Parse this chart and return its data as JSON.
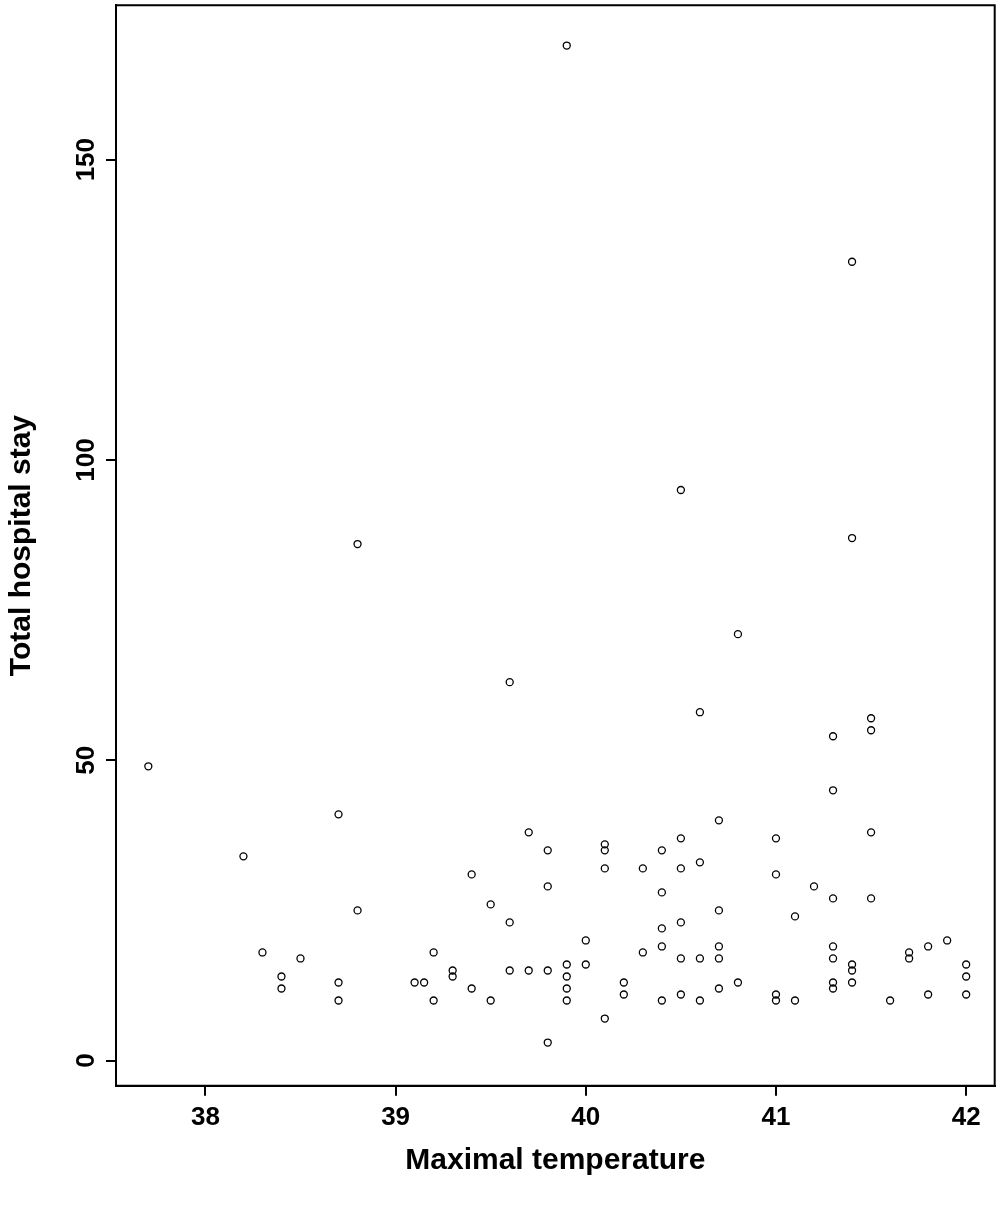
{
  "chart_data": {
    "type": "scatter",
    "xlabel": "Maximal temperature",
    "ylabel": "Total hospital stay",
    "color": "#000000",
    "marker": "circle",
    "grid": false,
    "legend": false,
    "xlim": [
      37.53,
      42.15
    ],
    "ylim": [
      -4.2,
      175.7
    ],
    "xticks": [
      38,
      39,
      40,
      41,
      42
    ],
    "yticks": [
      0,
      50,
      100,
      150
    ],
    "x": [
      37.7,
      38.2,
      38.3,
      38.4,
      38.4,
      38.5,
      38.7,
      38.7,
      38.7,
      38.8,
      38.8,
      39.1,
      39.15,
      39.2,
      39.2,
      39.3,
      39.3,
      39.4,
      39.4,
      39.5,
      39.5,
      39.6,
      39.6,
      39.6,
      39.7,
      39.7,
      39.8,
      39.8,
      39.8,
      39.8,
      39.9,
      39.9,
      39.9,
      39.9,
      39.9,
      40.0,
      40.0,
      40.1,
      40.1,
      40.1,
      40.1,
      40.2,
      40.2,
      40.3,
      40.3,
      40.4,
      40.4,
      40.4,
      40.4,
      40.4,
      40.5,
      40.5,
      40.5,
      40.5,
      40.5,
      40.5,
      40.6,
      40.6,
      40.6,
      40.6,
      40.7,
      40.7,
      40.7,
      40.7,
      40.7,
      40.8,
      40.8,
      41.0,
      41.0,
      41.0,
      41.0,
      41.1,
      41.1,
      41.2,
      41.3,
      41.3,
      41.3,
      41.3,
      41.3,
      41.3,
      41.3,
      41.4,
      41.4,
      41.4,
      41.4,
      41.4,
      41.5,
      41.5,
      41.5,
      41.5,
      41.6,
      41.7,
      41.7,
      41.8,
      41.8,
      41.9,
      42.0,
      42.0,
      42.0
    ],
    "values": [
      49,
      34,
      18,
      14,
      12,
      17,
      41,
      13,
      10,
      86,
      25,
      13,
      13,
      18,
      10,
      15,
      14,
      31,
      12,
      26,
      10,
      23,
      15,
      63,
      38,
      15,
      35,
      29,
      15,
      3,
      16,
      14,
      12,
      10,
      169,
      20,
      16,
      36,
      35,
      32,
      7,
      13,
      11,
      32,
      18,
      35,
      28,
      22,
      19,
      10,
      37,
      32,
      23,
      17,
      11,
      95,
      33,
      17,
      10,
      58,
      40,
      25,
      19,
      17,
      12,
      71,
      13,
      37,
      31,
      11,
      10,
      24,
      10,
      29,
      54,
      45,
      27,
      19,
      17,
      13,
      12,
      133,
      87,
      16,
      15,
      13,
      57,
      55,
      38,
      27,
      10,
      18,
      17,
      19,
      11,
      20,
      16,
      14,
      11
    ]
  }
}
